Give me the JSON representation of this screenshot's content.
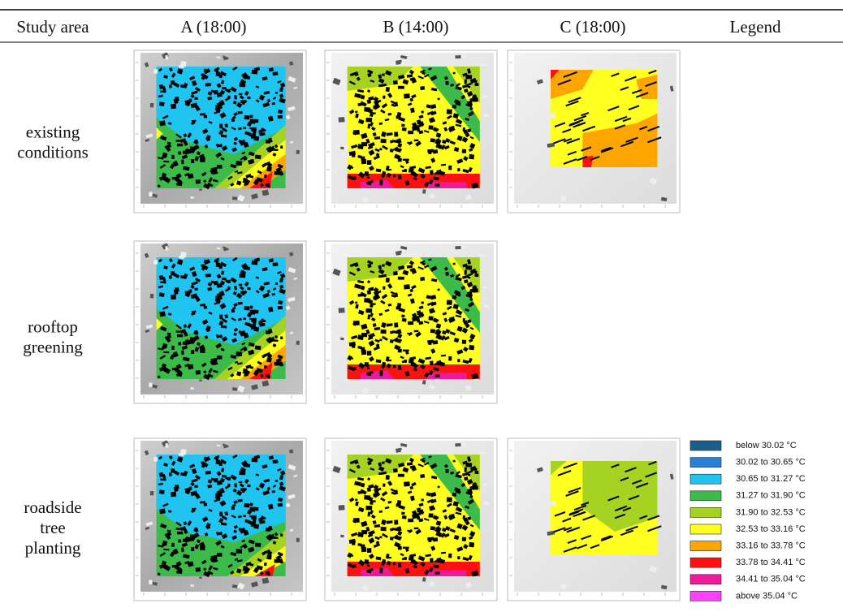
{
  "header": [
    "Study area",
    "A (18:00)",
    "B (14:00)",
    "C (18:00)",
    "Legend"
  ],
  "rows": [
    {
      "label": [
        "existing",
        "conditions"
      ]
    },
    {
      "label": [
        "rooftop",
        "greening"
      ]
    },
    {
      "label": [
        "roadside",
        "tree",
        "planting"
      ]
    }
  ],
  "legend": [
    {
      "label": "below 30.02 °C",
      "color": "#1a5e8a"
    },
    {
      "label": "30.02 to 30.65 °C",
      "color": "#2a7fd4"
    },
    {
      "label": "30.65 to 31.27 °C",
      "color": "#20c4f0"
    },
    {
      "label": "31.27 to 31.90 °C",
      "color": "#3cba4a"
    },
    {
      "label": "31.90 to 32.53 °C",
      "color": "#a6d322"
    },
    {
      "label": "32.53 to 33.16 °C",
      "color": "#ffff20"
    },
    {
      "label": "33.16 to 33.78 °C",
      "color": "#ffa500"
    },
    {
      "label": "33.78 to 34.41 °C",
      "color": "#ff1010"
    },
    {
      "label": "34.41 to 35.04 °C",
      "color": "#ee1a9a"
    },
    {
      "label": "above 35.04 °C",
      "color": "#ff40ff"
    }
  ]
}
